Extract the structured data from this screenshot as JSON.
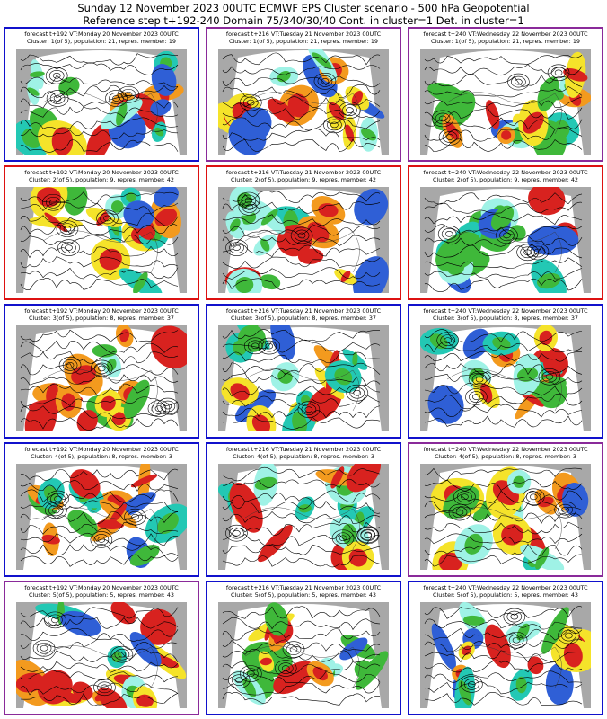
{
  "header": {
    "line1": "Sunday 12 November 2023 00UTC ECMWF EPS Cluster scenario - 500 hPa Geopotential",
    "line2": "Reference step t+192-240 Domain 75/340/30/40 Cont. in cluster=1 Det. in cluster=1"
  },
  "colors": {
    "blue": "#1111cc",
    "red": "#dd1111",
    "purple": "#8a2a9a"
  },
  "panels": [
    {
      "border": "blue",
      "line1": "forecast t+192 VT:Monday 20 November 2023 00UTC",
      "line2": "Cluster: 1(of 5), population: 21, repres. member: 19"
    },
    {
      "border": "purple",
      "line1": "forecast t+216 VT:Tuesday 21 November 2023 00UTC",
      "line2": "Cluster: 1(of 5), population: 21, repres. member: 19"
    },
    {
      "border": "purple",
      "line1": "forecast t+240 VT:Wednesday 22 November 2023 00UTC",
      "line2": "Cluster: 1(of 5), population: 21, repres. member: 19"
    },
    {
      "border": "red",
      "line1": "forecast t+192 VT:Monday 20 November 2023 00UTC",
      "line2": "Cluster: 2(of 5), population: 9, repres. member: 42"
    },
    {
      "border": "red",
      "line1": "forecast t+216 VT:Tuesday 21 November 2023 00UTC",
      "line2": "Cluster: 2(of 5), population: 9, repres. member: 42"
    },
    {
      "border": "red",
      "line1": "forecast t+240 VT:Wednesday 22 November 2023 00UTC",
      "line2": "Cluster: 2(of 5), population: 9, repres. member: 42"
    },
    {
      "border": "blue",
      "line1": "forecast t+192 VT:Monday 20 November 2023 00UTC",
      "line2": "Cluster: 3(of 5), population: 8, repres. member: 37"
    },
    {
      "border": "blue",
      "line1": "forecast t+216 VT:Tuesday 21 November 2023 00UTC",
      "line2": "Cluster: 3(of 5), population: 8, repres. member: 37"
    },
    {
      "border": "blue",
      "line1": "forecast t+240 VT:Wednesday 22 November 2023 00UTC",
      "line2": "Cluster: 3(of 5), population: 8, repres. member: 37"
    },
    {
      "border": "blue",
      "line1": "forecast t+192 VT:Monday 20 November 2023 00UTC",
      "line2": "Cluster: 4(of 5), population: 8, repres. member: 3"
    },
    {
      "border": "blue",
      "line1": "forecast t+216 VT:Tuesday 21 November 2023 00UTC",
      "line2": "Cluster: 4(of 5), population: 8, repres. member: 3"
    },
    {
      "border": "purple",
      "line1": "forecast t+240 VT:Wednesday 22 November 2023 00UTC",
      "line2": "Cluster: 4(of 5), population: 8, repres. member: 3"
    },
    {
      "border": "purple",
      "line1": "forecast t+192 VT:Monday 20 November 2023 00UTC",
      "line2": "Cluster: 5(of 5), population: 5, repres. member: 43"
    },
    {
      "border": "blue",
      "line1": "forecast t+216 VT:Tuesday 21 November 2023 00UTC",
      "line2": "Cluster: 5(of 5), population: 5, repres. member: 43"
    },
    {
      "border": "blue",
      "line1": "forecast t+240 VT:Wednesday 22 November 2023 00UTC",
      "line2": "Cluster: 5(of 5), population: 5, repres. member: 43"
    }
  ]
}
